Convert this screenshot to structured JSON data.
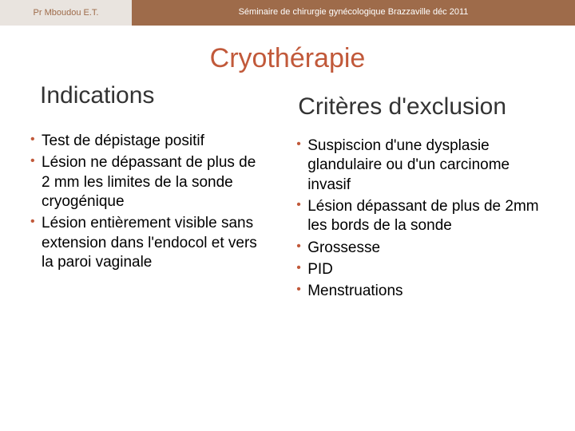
{
  "colors": {
    "header_left_bg": "#e9e4df",
    "header_left_text": "#9e6b4a",
    "header_right_bg": "#9e6b4a",
    "header_right_text": "#ffffff",
    "title_color": "#c1593a",
    "heading_color": "#333333",
    "body_text": "#000000",
    "bullet_marker": "#c1593a",
    "divider": "#777777"
  },
  "header": {
    "left": "Pr Mboudou E.T.",
    "right": "Séminaire de chirurgie gynécologique Brazzaville déc 2011"
  },
  "title": "Cryothérapie",
  "left": {
    "heading": "Indications",
    "items": [
      "Test de dépistage positif",
      "Lésion ne dépassant de plus de 2 mm les limites de la sonde cryogénique",
      "Lésion entièrement visible sans extension dans l'endocol et vers la paroi vaginale"
    ]
  },
  "right": {
    "heading": "Critères d'exclusion",
    "items": [
      "Suspiscion d'une dysplasie glandulaire ou d'un carcinome invasif",
      "Lésion dépassant de plus de 2mm les bords de la sonde",
      "Grossesse",
      "PID",
      "Menstruations"
    ]
  },
  "typography": {
    "title_fontsize": 34,
    "heading_fontsize": 30,
    "body_fontsize": 19,
    "header_fontsize": 11
  }
}
